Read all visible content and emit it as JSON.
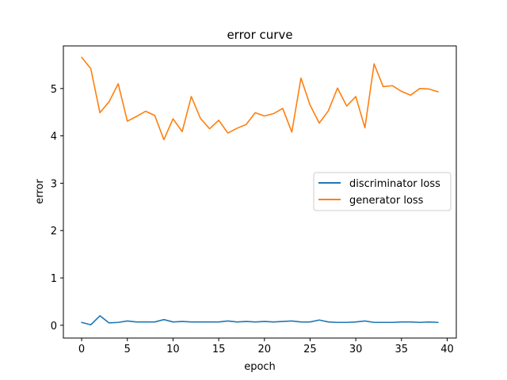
{
  "chart_data": {
    "type": "line",
    "title": "error curve",
    "xlabel": "epoch",
    "ylabel": "error",
    "xlim": [
      -2,
      41
    ],
    "ylim": [
      -0.27,
      5.9
    ],
    "xticks": [
      0,
      5,
      10,
      15,
      20,
      25,
      30,
      35,
      40
    ],
    "yticks": [
      0,
      1,
      2,
      3,
      4,
      5
    ],
    "grid": false,
    "legend_position": "center-right",
    "x": [
      0,
      1,
      2,
      3,
      4,
      5,
      6,
      7,
      8,
      9,
      10,
      11,
      12,
      13,
      14,
      15,
      16,
      17,
      18,
      19,
      20,
      21,
      22,
      23,
      24,
      25,
      26,
      27,
      28,
      29,
      30,
      31,
      32,
      33,
      34,
      35,
      36,
      37,
      38,
      39
    ],
    "series": [
      {
        "name": "discriminator loss",
        "color": "#1f77b4",
        "values": [
          0.06,
          0.01,
          0.2,
          0.05,
          0.06,
          0.09,
          0.07,
          0.07,
          0.07,
          0.12,
          0.07,
          0.08,
          0.07,
          0.07,
          0.07,
          0.07,
          0.09,
          0.07,
          0.08,
          0.07,
          0.08,
          0.07,
          0.08,
          0.09,
          0.07,
          0.07,
          0.11,
          0.07,
          0.06,
          0.06,
          0.07,
          0.09,
          0.06,
          0.06,
          0.06,
          0.07,
          0.07,
          0.06,
          0.07,
          0.06
        ]
      },
      {
        "name": "generator loss",
        "color": "#ff7f0e",
        "values": [
          5.66,
          5.42,
          4.49,
          4.72,
          5.1,
          4.31,
          4.41,
          4.52,
          4.43,
          3.92,
          4.36,
          4.09,
          4.83,
          4.37,
          4.15,
          4.33,
          4.06,
          4.16,
          4.24,
          4.49,
          4.42,
          4.47,
          4.58,
          4.08,
          5.22,
          4.65,
          4.27,
          4.53,
          5.01,
          4.63,
          4.83,
          4.17,
          5.52,
          5.04,
          5.06,
          4.94,
          4.86,
          5.0,
          4.99,
          4.93
        ]
      }
    ]
  }
}
